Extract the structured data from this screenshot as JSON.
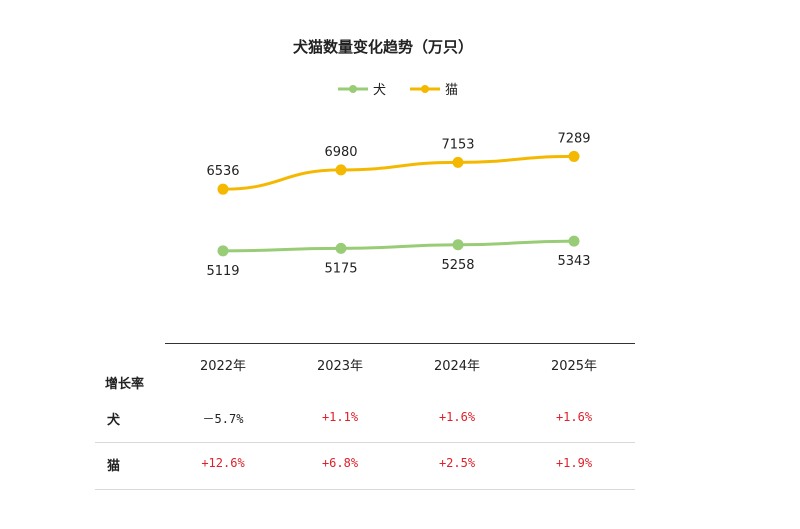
{
  "chart_data": {
    "type": "line",
    "title": "犬猫数量变化趋势（万只）",
    "categories": [
      "2022年",
      "2023年",
      "2024年",
      "2025年"
    ],
    "series": [
      {
        "name": "犬",
        "color": "#99cc77",
        "values": [
          5119,
          5175,
          5258,
          5343
        ]
      },
      {
        "name": "猫",
        "color": "#f5b800",
        "values": [
          6536,
          6980,
          7153,
          7289
        ]
      }
    ],
    "legend_position": "top-center",
    "grid": false
  },
  "table": {
    "row_header": "增长率",
    "columns": [
      "2022年",
      "2023年",
      "2024年",
      "2025年"
    ],
    "rows": [
      {
        "label": "犬",
        "values": [
          "－5.7%",
          "+1.1%",
          "+1.6%",
          "+1.6%"
        ],
        "colors": [
          "#222222",
          "#e0202a",
          "#e0202a",
          "#e0202a"
        ]
      },
      {
        "label": "猫",
        "values": [
          "+12.6%",
          "+6.8%",
          "+2.5%",
          "+1.9%"
        ],
        "colors": [
          "#e0202a",
          "#e0202a",
          "#e0202a",
          "#e0202a"
        ]
      }
    ]
  }
}
